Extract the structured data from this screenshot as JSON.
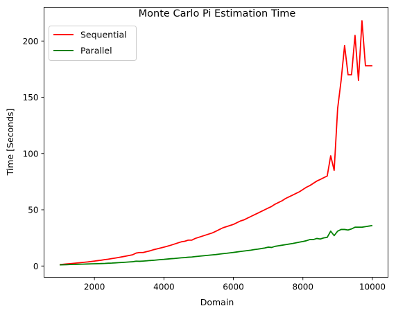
{
  "colors": {
    "sequential": "#ff0000",
    "parallel": "#008000"
  },
  "chart_data": {
    "type": "line",
    "title": "Monte Carlo Pi Estimation Time",
    "xlabel": "Domain",
    "ylabel": "Time [Seconds]",
    "xlim": [
      550,
      10450
    ],
    "ylim": [
      -10,
      230
    ],
    "xticks": [
      2000,
      4000,
      6000,
      8000,
      10000
    ],
    "yticks": [
      0,
      50,
      100,
      150,
      200
    ],
    "legend_position": "top-left",
    "grid": false,
    "x": [
      1000,
      1100,
      1200,
      1300,
      1400,
      1500,
      1600,
      1700,
      1800,
      1900,
      2000,
      2100,
      2200,
      2300,
      2400,
      2500,
      2600,
      2700,
      2800,
      2900,
      3000,
      3100,
      3200,
      3300,
      3400,
      3500,
      3600,
      3700,
      3800,
      3900,
      4000,
      4100,
      4200,
      4300,
      4400,
      4500,
      4600,
      4700,
      4800,
      4900,
      5000,
      5100,
      5200,
      5300,
      5400,
      5500,
      5600,
      5700,
      5800,
      5900,
      6000,
      6100,
      6200,
      6300,
      6400,
      6500,
      6600,
      6700,
      6800,
      6900,
      7000,
      7100,
      7200,
      7300,
      7400,
      7500,
      7600,
      7700,
      7800,
      7900,
      8000,
      8100,
      8200,
      8300,
      8400,
      8500,
      8600,
      8700,
      8800,
      8900,
      9000,
      9100,
      9200,
      9300,
      9400,
      9500,
      9600,
      9700,
      9800,
      9900,
      10000
    ],
    "series": [
      {
        "name": "Sequential",
        "color": "#ff0000",
        "values": [
          1.2,
          1.5,
          1.8,
          2.1,
          2.4,
          2.7,
          3.0,
          3.3,
          3.6,
          4.0,
          4.4,
          4.8,
          5.2,
          5.7,
          6.1,
          6.6,
          7.1,
          7.6,
          8.2,
          8.8,
          9.4,
          10.0,
          11.5,
          12.0,
          12.0,
          12.8,
          13.5,
          14.5,
          15.2,
          16.0,
          16.8,
          17.6,
          18.5,
          19.5,
          20.5,
          21.5,
          22.0,
          23.0,
          23.0,
          24.5,
          25.5,
          26.5,
          27.5,
          28.5,
          29.5,
          31.0,
          32.5,
          34.0,
          35.0,
          36.0,
          37.0,
          38.5,
          40.0,
          41.0,
          42.5,
          44.0,
          45.5,
          47.0,
          48.5,
          50.0,
          51.5,
          53.0,
          55.0,
          56.5,
          58.0,
          60.0,
          61.5,
          63.0,
          64.5,
          66.0,
          68.0,
          70.0,
          71.5,
          73.5,
          75.5,
          77.0,
          78.5,
          80.0,
          98.0,
          85.0,
          140.0,
          165.0,
          196.0,
          170.0,
          170.0,
          205.0,
          165.0,
          218.0,
          178.0,
          178.0,
          178.0
        ]
      },
      {
        "name": "Parallel",
        "color": "#008000",
        "values": [
          1.0,
          1.1,
          1.2,
          1.3,
          1.4,
          1.5,
          1.6,
          1.7,
          1.8,
          1.9,
          2.0,
          2.1,
          2.2,
          2.3,
          2.5,
          2.6,
          2.8,
          3.0,
          3.2,
          3.4,
          3.6,
          3.8,
          4.3,
          4.2,
          4.4,
          4.6,
          4.9,
          5.1,
          5.4,
          5.7,
          5.9,
          6.2,
          6.5,
          6.7,
          7.0,
          7.3,
          7.5,
          7.8,
          8.0,
          8.4,
          8.7,
          9.0,
          9.3,
          9.6,
          9.9,
          10.2,
          10.6,
          11.0,
          11.3,
          11.7,
          12.1,
          12.5,
          12.9,
          13.3,
          13.7,
          14.1,
          14.6,
          15.0,
          15.5,
          16.0,
          16.8,
          16.5,
          17.5,
          18.0,
          18.5,
          19.0,
          19.5,
          20.0,
          20.6,
          21.2,
          21.8,
          22.5,
          23.5,
          23.5,
          24.5,
          24.0,
          25.0,
          25.5,
          31.0,
          27.0,
          31.0,
          32.5,
          32.5,
          32.0,
          33.0,
          34.5,
          34.5,
          34.5,
          35.0,
          35.5,
          36.0
        ]
      }
    ]
  }
}
